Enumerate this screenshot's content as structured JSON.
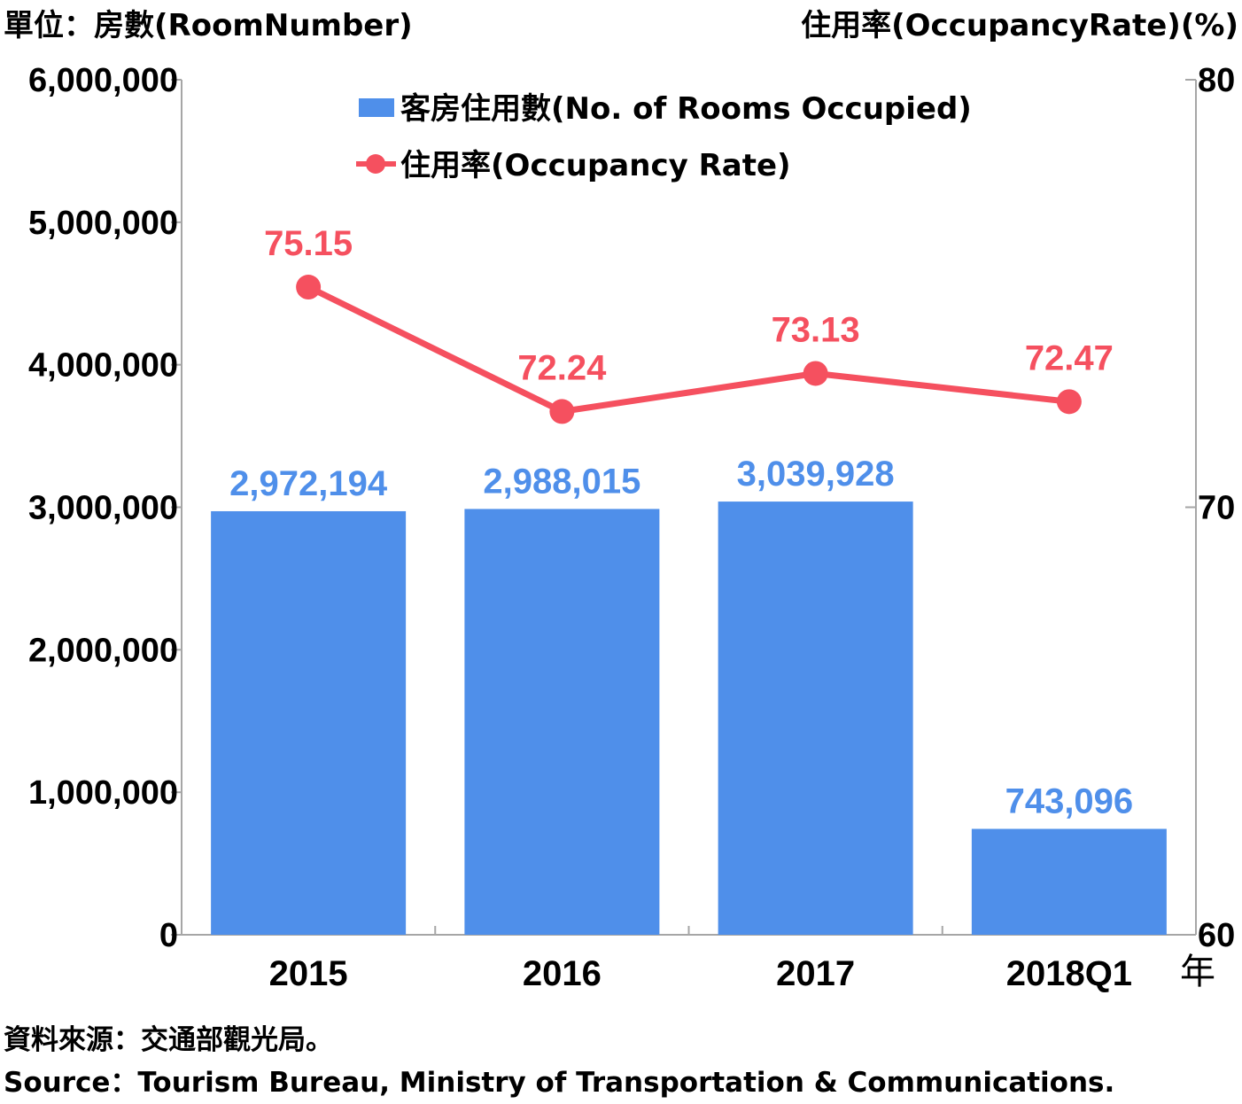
{
  "chart_data": {
    "type": "bar",
    "left_axis_unit": "單位：房數(RoomNumber)",
    "right_axis_unit": "住用率(OccupancyRate)(%)",
    "categories": [
      "2015",
      "2016",
      "2017",
      "2018Q1"
    ],
    "x_unit": "年",
    "y_left": {
      "range": [
        0,
        6000000
      ],
      "ticks": [
        0,
        1000000,
        2000000,
        3000000,
        4000000,
        5000000,
        6000000
      ],
      "tick_labels": [
        "0",
        "1,000,000",
        "2,000,000",
        "3,000,000",
        "4,000,000",
        "5,000,000",
        "6,000,000"
      ]
    },
    "y_right": {
      "range": [
        60,
        80
      ],
      "ticks": [
        60,
        70,
        80
      ],
      "tick_labels": [
        "60",
        "70",
        "80"
      ]
    },
    "grid": false,
    "legend_position": "top-center",
    "series": [
      {
        "name": "客房住用數(No. of Rooms Occupied)",
        "type": "bar",
        "axis": "left",
        "color": "#4f8fea",
        "values": [
          2972194,
          2988015,
          3039928,
          743096
        ],
        "data_labels": [
          "2,972,194",
          "2,988,015",
          "3,039,928",
          "743,096"
        ]
      },
      {
        "name": "住用率(Occupancy Rate)",
        "type": "line",
        "axis": "right",
        "color": "#f5505f",
        "values": [
          75.15,
          72.24,
          73.13,
          72.47
        ],
        "data_labels": [
          "75.15",
          "72.24",
          "73.13",
          "72.47"
        ]
      }
    ]
  },
  "source": {
    "zh": "資料來源：交通部觀光局。",
    "en": "Source：Tourism Bureau, Ministry of Transportation & Communications."
  }
}
